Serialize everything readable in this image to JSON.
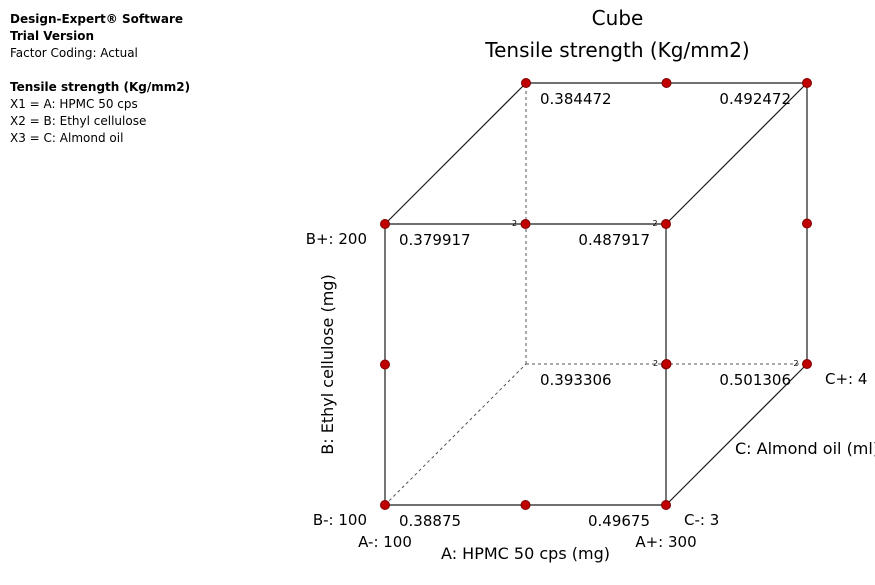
{
  "info": {
    "software": "Design-Expert® Software",
    "version": "Trial Version",
    "coding": "Factor Coding: Actual",
    "response": "Tensile strength (Kg/mm2)",
    "x1": "X1 = A: HPMC 50 cps",
    "x2": "X2 = B: Ethyl cellulose",
    "x3": "X3 = C: Almond oil"
  },
  "chart_data": {
    "type": "cube",
    "title": "Cube",
    "subtitle": "Tensile strength (Kg/mm2)",
    "axes": {
      "a": {
        "label": "A: HPMC 50 cps (mg)",
        "low": "A-: 100",
        "high": "A+: 300"
      },
      "b": {
        "label": "B: Ethyl cellulose  (mg)",
        "low": "B-: 100",
        "high": "B+: 200"
      },
      "c": {
        "label": "C: Almond oil (ml)",
        "low": "C-: 3",
        "high": "C+: 4"
      }
    },
    "corners": [
      {
        "a": -1,
        "b": -1,
        "c": -1,
        "value": "0.38875"
      },
      {
        "a": 1,
        "b": -1,
        "c": -1,
        "value": "0.49675"
      },
      {
        "a": -1,
        "b": 1,
        "c": -1,
        "value": "0.379917"
      },
      {
        "a": 1,
        "b": 1,
        "c": -1,
        "value": "0.487917"
      },
      {
        "a": -1,
        "b": -1,
        "c": 1,
        "value": "0.393306"
      },
      {
        "a": 1,
        "b": -1,
        "c": 1,
        "value": "0.501306"
      },
      {
        "a": -1,
        "b": 1,
        "c": 1,
        "value": "0.384472"
      },
      {
        "a": 1,
        "b": 1,
        "c": 1,
        "value": "0.492472"
      }
    ],
    "replicate_marker": "2",
    "replicated_points": [
      {
        "a": 0,
        "b": 1,
        "c": -1
      },
      {
        "a": 1,
        "b": 1,
        "c": -1
      },
      {
        "a": 0,
        "b": -1,
        "c": 1
      },
      {
        "a": 1,
        "b": -1,
        "c": 1
      }
    ],
    "design_points": [
      {
        "a": -1,
        "b": -1,
        "c": -1
      },
      {
        "a": 0,
        "b": -1,
        "c": -1
      },
      {
        "a": 1,
        "b": -1,
        "c": -1
      },
      {
        "a": -1,
        "b": 0,
        "c": -1
      },
      {
        "a": 1,
        "b": 0,
        "c": -1
      },
      {
        "a": -1,
        "b": 1,
        "c": -1
      },
      {
        "a": 0,
        "b": 1,
        "c": -1
      },
      {
        "a": 1,
        "b": 1,
        "c": -1
      },
      {
        "a": 0,
        "b": -1,
        "c": 1
      },
      {
        "a": 1,
        "b": -1,
        "c": 1
      },
      {
        "a": 1,
        "b": 0,
        "c": 1
      },
      {
        "a": -1,
        "b": 1,
        "c": 1
      },
      {
        "a": 0,
        "b": 1,
        "c": 1
      },
      {
        "a": 1,
        "b": 1,
        "c": 1
      }
    ],
    "point_color": "#c00000",
    "point_stroke": "#800000"
  }
}
